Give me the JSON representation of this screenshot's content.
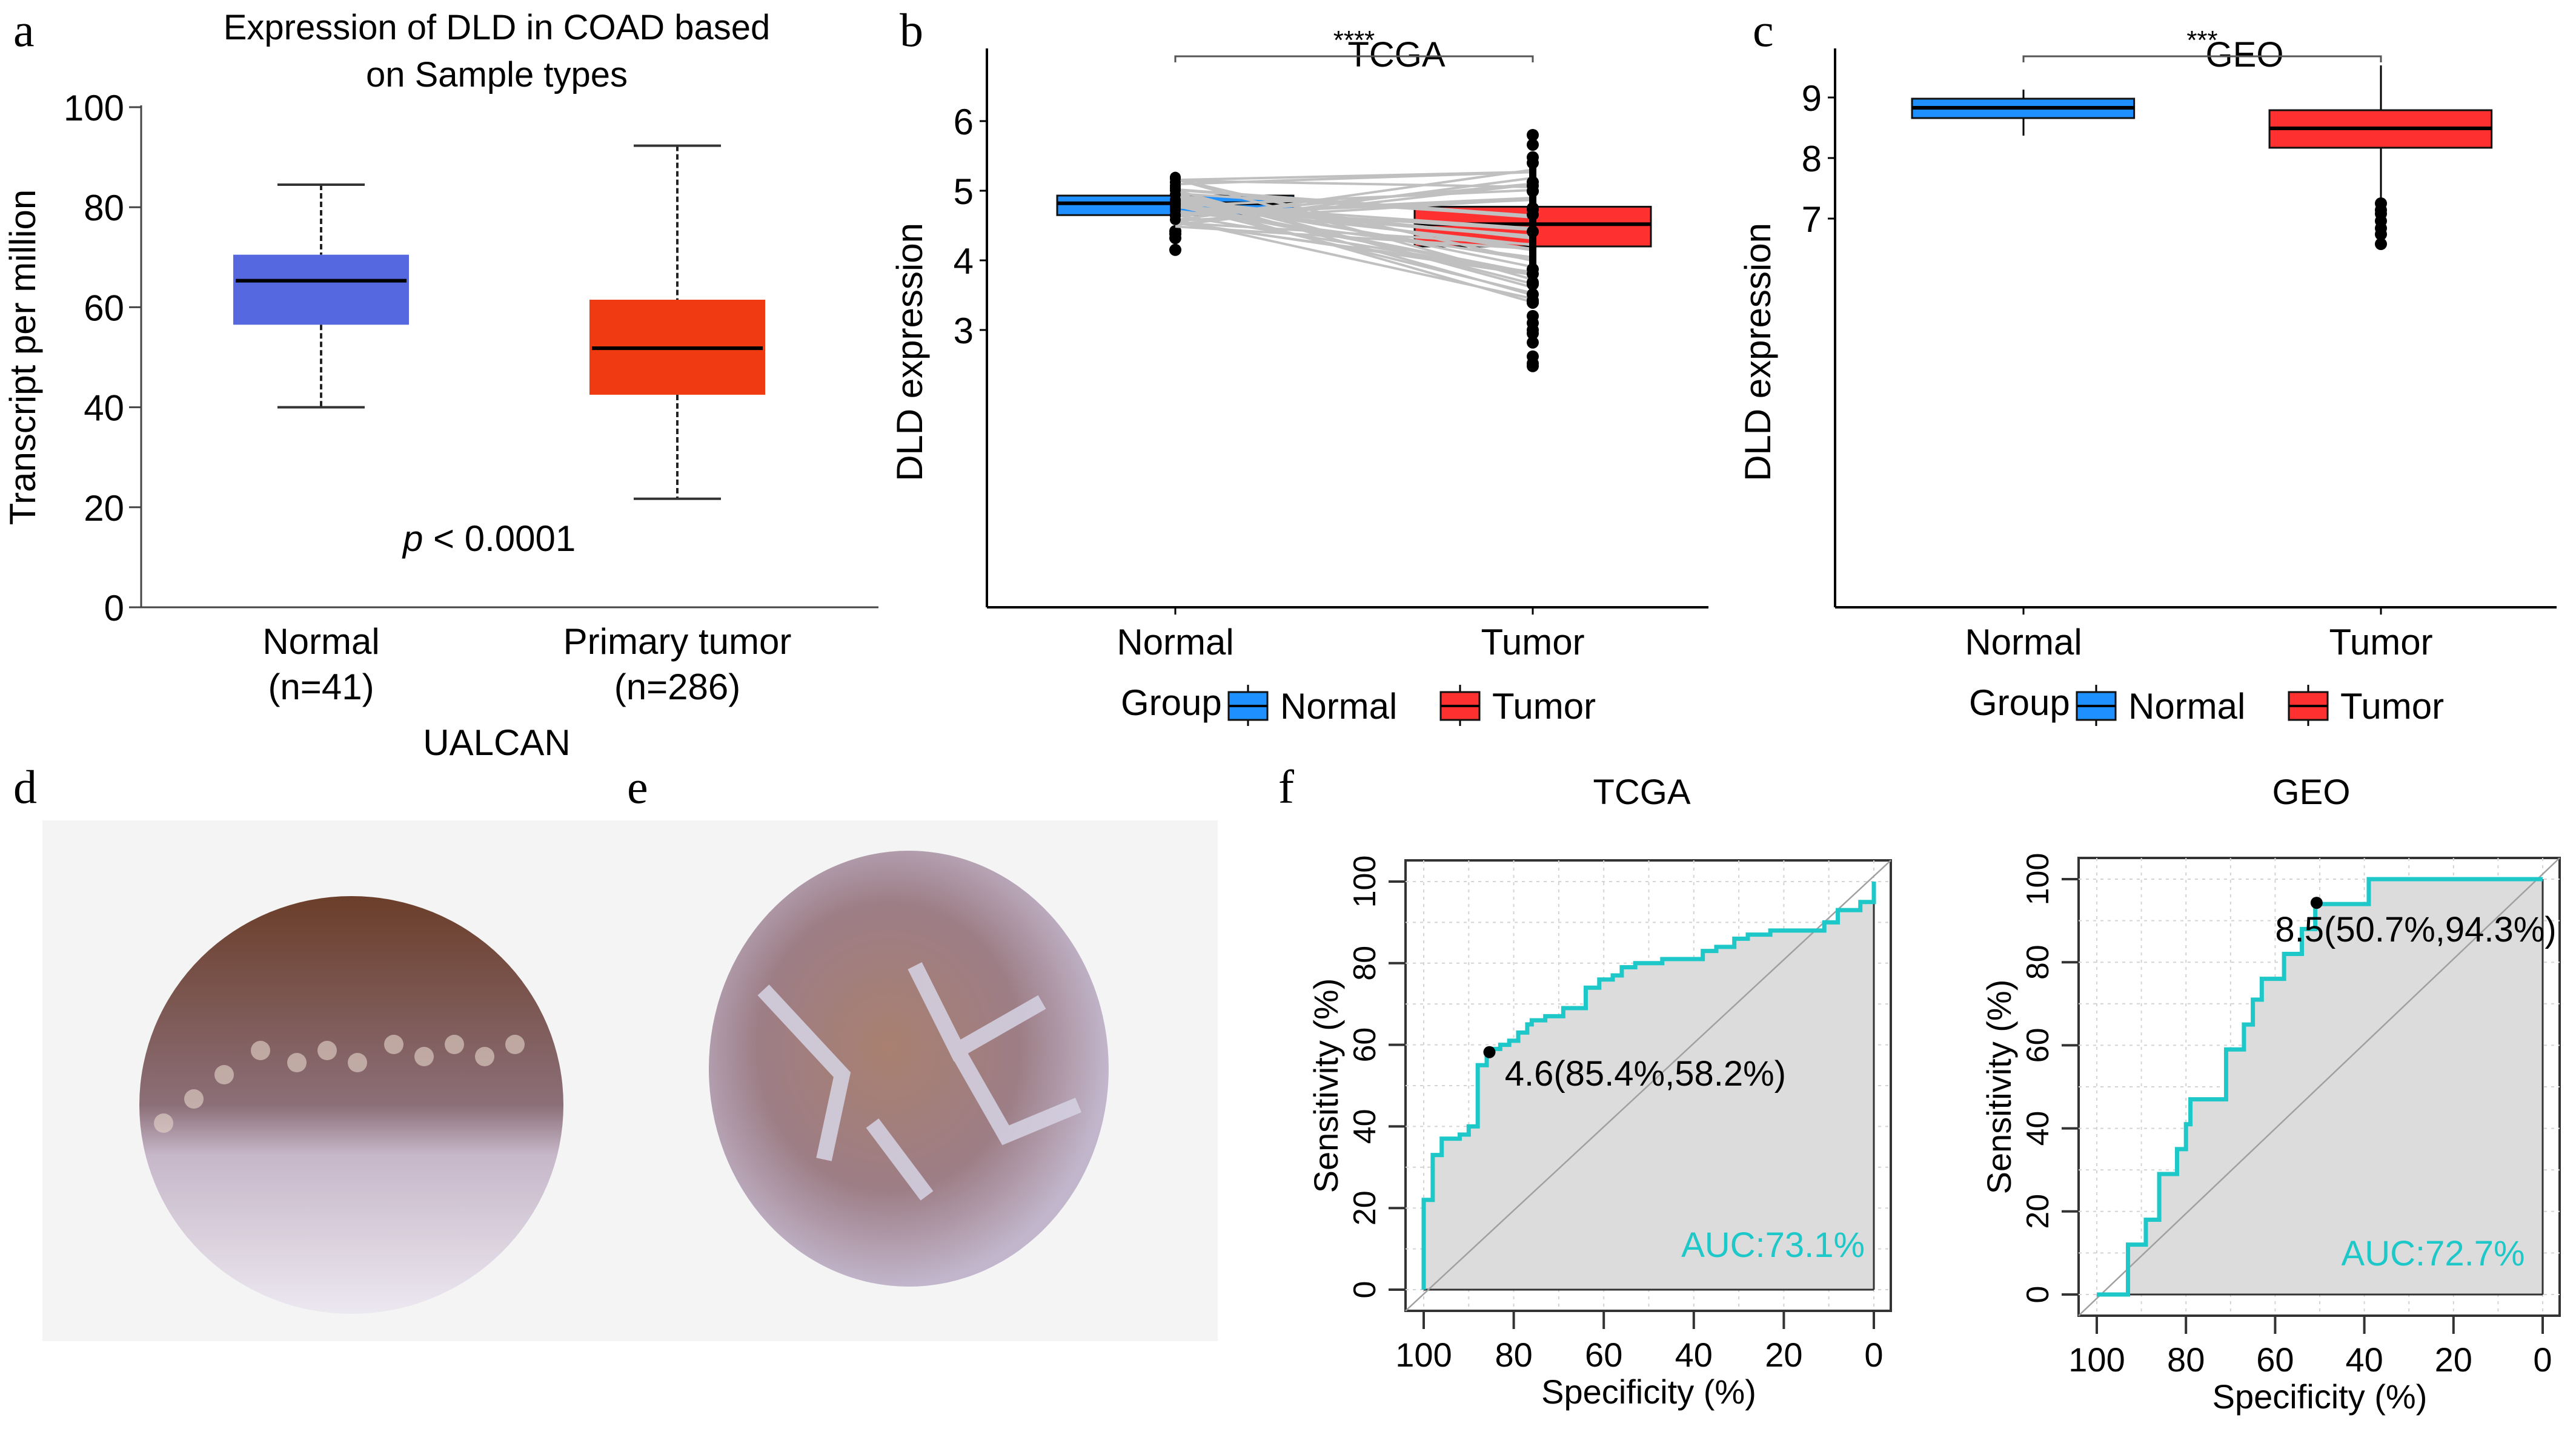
{
  "figure": {
    "panel_letters": [
      "a",
      "b",
      "c",
      "d",
      "e",
      "f"
    ]
  },
  "chart_data": [
    {
      "id": "a",
      "type": "boxplot",
      "title": "Expression of DLD in COAD based on Sample types",
      "title_lines": [
        "Expression of DLD in COAD based",
        "on Sample types"
      ],
      "xlabel": "UALCAN",
      "ylabel": "Transcript per million",
      "ylim": [
        0,
        100
      ],
      "yticks": [
        0,
        20,
        40,
        60,
        80,
        100
      ],
      "annotation": {
        "italic": "p",
        "text": " < 0.0001"
      },
      "categories": [
        {
          "label": "Normal",
          "sublabel": "(n=41)",
          "min": 40,
          "q1": 56.5,
          "median": 65.3,
          "q3": 70.5,
          "max": 84.5,
          "color": "#5568E0"
        },
        {
          "label": "Primary tumor",
          "sublabel": "(n=286)",
          "min": 21.7,
          "q1": 42.5,
          "median": 51.8,
          "q3": 61.5,
          "max": 92.3,
          "color": "#F03A12"
        }
      ]
    },
    {
      "id": "b",
      "type": "boxplot",
      "title": "TCGA",
      "xlabel": "",
      "ylabel": "DLD expression",
      "ylim": [
        2.4,
        6.1
      ],
      "yticks": [
        3,
        4,
        5,
        6
      ],
      "significance": "****",
      "legend": {
        "title": "Group",
        "position": "bottom",
        "entries": [
          {
            "label": "Normal",
            "color": "#1E90FF"
          },
          {
            "label": "Tumor",
            "color": "#FF3030"
          }
        ]
      },
      "categories": [
        {
          "label": "Normal",
          "min": 4.58,
          "q1": 4.65,
          "median": 4.82,
          "q3": 4.93,
          "max": 5.2,
          "color": "#1E90FF",
          "outliers": [
            4.15,
            4.32,
            4.38,
            4.42
          ]
        },
        {
          "label": "Tumor",
          "min": 3.35,
          "q1": 4.2,
          "median": 4.52,
          "q3": 4.77,
          "max": 5.33,
          "color": "#FF3030",
          "outliers": [
            5.8,
            5.66,
            5.48,
            5.4,
            3.2,
            3.1,
            3.0,
            2.95,
            2.82,
            2.62,
            2.52,
            2.48
          ]
        }
      ],
      "paired_lines": "gray lines connecting paired Normal and Tumor samples"
    },
    {
      "id": "c",
      "type": "boxplot",
      "title": "GEO",
      "xlabel": "",
      "ylabel": "DLD expression",
      "ylim": [
        6.42,
        9.82
      ],
      "yticks": [
        7,
        8,
        9
      ],
      "significance": "***",
      "legend": {
        "title": "Group",
        "position": "bottom",
        "entries": [
          {
            "label": "Normal",
            "color": "#1E90FF"
          },
          {
            "label": "Tumor",
            "color": "#FF3030"
          }
        ]
      },
      "categories": [
        {
          "label": "Normal",
          "min": 8.37,
          "q1": 8.66,
          "median": 8.83,
          "q3": 8.98,
          "max": 9.13,
          "color": "#1E90FF",
          "outliers": []
        },
        {
          "label": "Tumor",
          "min": 7.32,
          "q1": 8.17,
          "median": 8.49,
          "q3": 8.79,
          "max": 9.53,
          "color": "#FF3030",
          "outliers": [
            7.25,
            7.14,
            7.08,
            6.96,
            6.84,
            6.74,
            6.58
          ]
        }
      ]
    },
    {
      "id": "f1",
      "type": "line",
      "subtype": "roc",
      "title": "TCGA",
      "xlabel": "Specificity (%)",
      "ylabel": "Sensitivity (%)",
      "xlim": [
        100,
        0
      ],
      "ylim": [
        0,
        100
      ],
      "xticks": [
        100,
        80,
        60,
        40,
        20,
        0
      ],
      "yticks": [
        0,
        20,
        40,
        60,
        80,
        100
      ],
      "grid": true,
      "auc_label": "AUC:73.1%",
      "cutoff": {
        "label": "4.6(85.4%,58.2%)",
        "specificity": 85.4,
        "sensitivity": 58.2
      },
      "curve_color": "#1EC8C8",
      "points": [
        [
          100,
          0
        ],
        [
          100,
          22
        ],
        [
          98,
          22
        ],
        [
          98,
          33
        ],
        [
          96,
          33
        ],
        [
          96,
          37
        ],
        [
          92,
          37
        ],
        [
          92,
          38
        ],
        [
          90,
          38
        ],
        [
          90,
          40
        ],
        [
          88,
          40
        ],
        [
          88,
          55
        ],
        [
          86,
          55
        ],
        [
          86,
          58
        ],
        [
          85,
          58
        ],
        [
          85,
          59
        ],
        [
          83,
          59
        ],
        [
          83,
          60
        ],
        [
          81,
          60
        ],
        [
          81,
          61
        ],
        [
          79,
          61
        ],
        [
          79,
          63
        ],
        [
          77,
          63
        ],
        [
          77,
          65
        ],
        [
          76,
          65
        ],
        [
          76,
          66
        ],
        [
          73,
          66
        ],
        [
          73,
          67
        ],
        [
          69,
          67
        ],
        [
          69,
          69
        ],
        [
          64,
          69
        ],
        [
          64,
          74
        ],
        [
          61,
          74
        ],
        [
          61,
          76
        ],
        [
          58,
          76
        ],
        [
          58,
          77
        ],
        [
          56,
          77
        ],
        [
          56,
          79
        ],
        [
          53,
          79
        ],
        [
          53,
          80
        ],
        [
          47,
          80
        ],
        [
          47,
          81
        ],
        [
          38,
          81
        ],
        [
          38,
          83
        ],
        [
          35,
          83
        ],
        [
          35,
          84
        ],
        [
          31,
          84
        ],
        [
          31,
          86
        ],
        [
          28,
          86
        ],
        [
          28,
          87
        ],
        [
          23,
          87
        ],
        [
          23,
          88
        ],
        [
          11,
          88
        ],
        [
          11,
          90
        ],
        [
          8,
          90
        ],
        [
          8,
          93
        ],
        [
          3,
          93
        ],
        [
          3,
          95
        ],
        [
          0,
          95
        ],
        [
          0,
          100
        ]
      ]
    },
    {
      "id": "f2",
      "type": "line",
      "subtype": "roc",
      "title": "GEO",
      "xlabel": "Specificity (%)",
      "ylabel": "Sensitivity (%)",
      "xlim": [
        100,
        0
      ],
      "ylim": [
        0,
        100
      ],
      "xticks": [
        100,
        80,
        60,
        40,
        20,
        0
      ],
      "yticks": [
        0,
        20,
        40,
        60,
        80,
        100
      ],
      "grid": true,
      "auc_label": "AUC:72.7%",
      "cutoff": {
        "label": "8.5(50.7%,94.3%)",
        "specificity": 50.7,
        "sensitivity": 94.3
      },
      "curve_color": "#1EC8C8",
      "points": [
        [
          100,
          0
        ],
        [
          93,
          0
        ],
        [
          93,
          12
        ],
        [
          89,
          12
        ],
        [
          89,
          18
        ],
        [
          86,
          18
        ],
        [
          86,
          29
        ],
        [
          82,
          29
        ],
        [
          82,
          35
        ],
        [
          80,
          35
        ],
        [
          80,
          41
        ],
        [
          79,
          41
        ],
        [
          79,
          47
        ],
        [
          71,
          47
        ],
        [
          71,
          59
        ],
        [
          67,
          59
        ],
        [
          67,
          65
        ],
        [
          65,
          65
        ],
        [
          65,
          71
        ],
        [
          63,
          71
        ],
        [
          63,
          76
        ],
        [
          58,
          76
        ],
        [
          58,
          82
        ],
        [
          54,
          82
        ],
        [
          54,
          88
        ],
        [
          51,
          88
        ],
        [
          51,
          94
        ],
        [
          39,
          94
        ],
        [
          39,
          100
        ],
        [
          0,
          100
        ]
      ]
    }
  ],
  "images": [
    {
      "id": "d",
      "alt": "IHC staining of DLD in normal colon tissue"
    },
    {
      "id": "e",
      "alt": "IHC staining of DLD in colon adenocarcinoma tissue"
    }
  ]
}
